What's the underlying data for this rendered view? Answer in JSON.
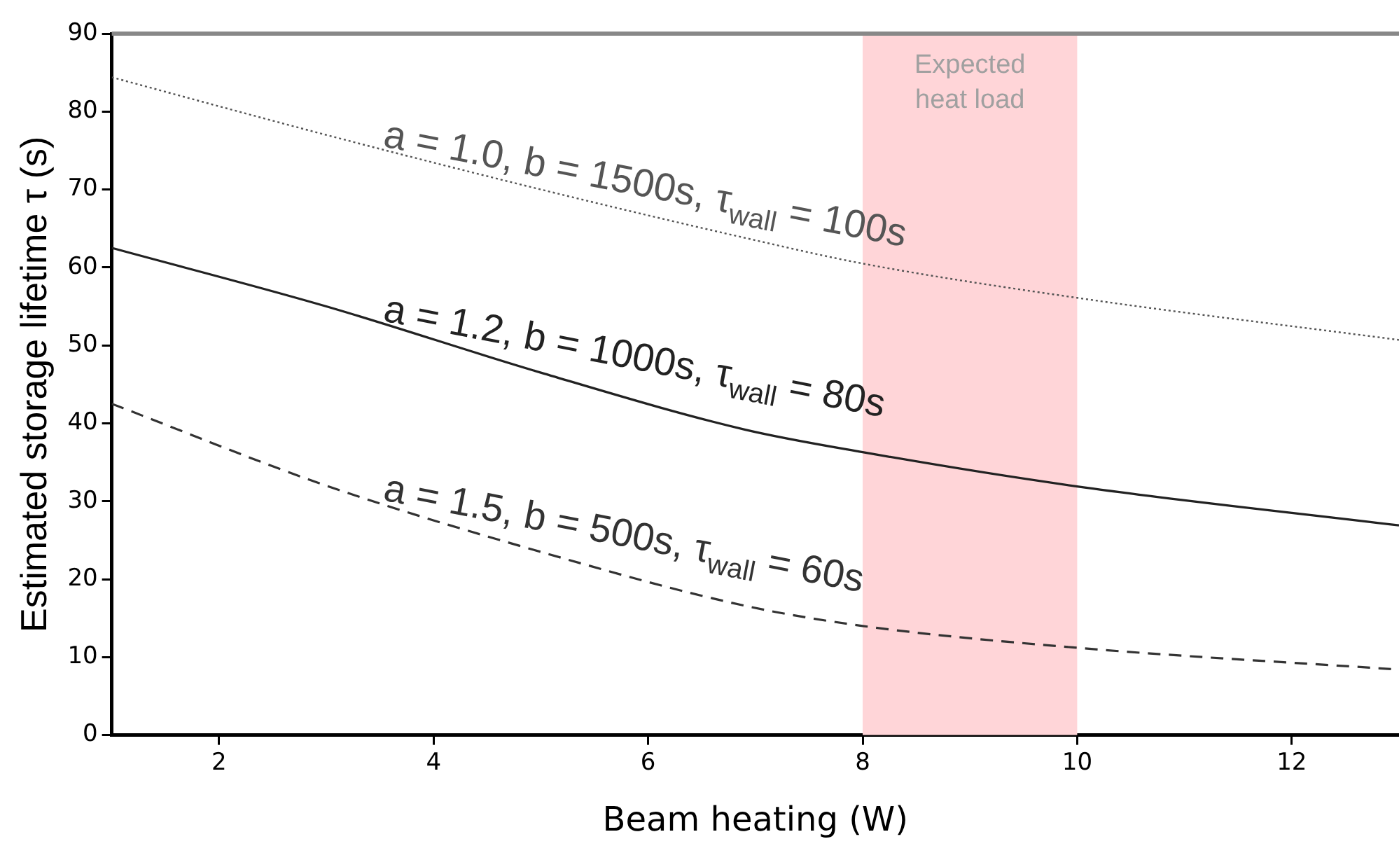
{
  "chart_data": {
    "type": "line",
    "xlabel": "Beam heating (W)",
    "ylabel": "Estimated storage lifetime τ (s)",
    "xlim": [
      1,
      13
    ],
    "xticks": [
      2,
      4,
      6,
      8,
      10,
      12
    ],
    "ylim": [
      0,
      90
    ],
    "yticks": [
      0,
      10,
      20,
      30,
      40,
      50,
      60,
      70,
      80,
      90
    ],
    "grid": false,
    "legend": false,
    "marker": "none",
    "bands": [
      {
        "axis": "x",
        "from": 8,
        "to": 10,
        "label": "Expected heat load",
        "color": "#ffd5d8"
      }
    ],
    "series": [
      {
        "name": "a = 1.0, b = 1500s, τ$_{wall}$ = 100s",
        "color": "#555555",
        "line_style": "dotted",
        "x": [
          1,
          3,
          5,
          6.9,
          8,
          10,
          13
        ],
        "values": [
          84.4,
          77,
          70,
          63.8,
          60.5,
          56.1,
          50.7
        ]
      },
      {
        "name": "a = 1.2, b = 1000s, τ$_{wall}$ = 80s",
        "color": "#222222",
        "line_style": "solid",
        "x": [
          1,
          3,
          5,
          6.9,
          8,
          10,
          13
        ],
        "values": [
          62.5,
          55,
          46.5,
          39.2,
          36.3,
          31.9,
          26.9
        ]
      },
      {
        "name": "a = 1.5, b = 500s, τ$_{wall}$ = 60s",
        "color": "#333333",
        "line_style": "dashed",
        "x": [
          1,
          3,
          5,
          6.9,
          8,
          10,
          13
        ],
        "values": [
          42.5,
          32,
          23.5,
          16.6,
          14,
          11.2,
          8.4
        ]
      }
    ]
  }
}
